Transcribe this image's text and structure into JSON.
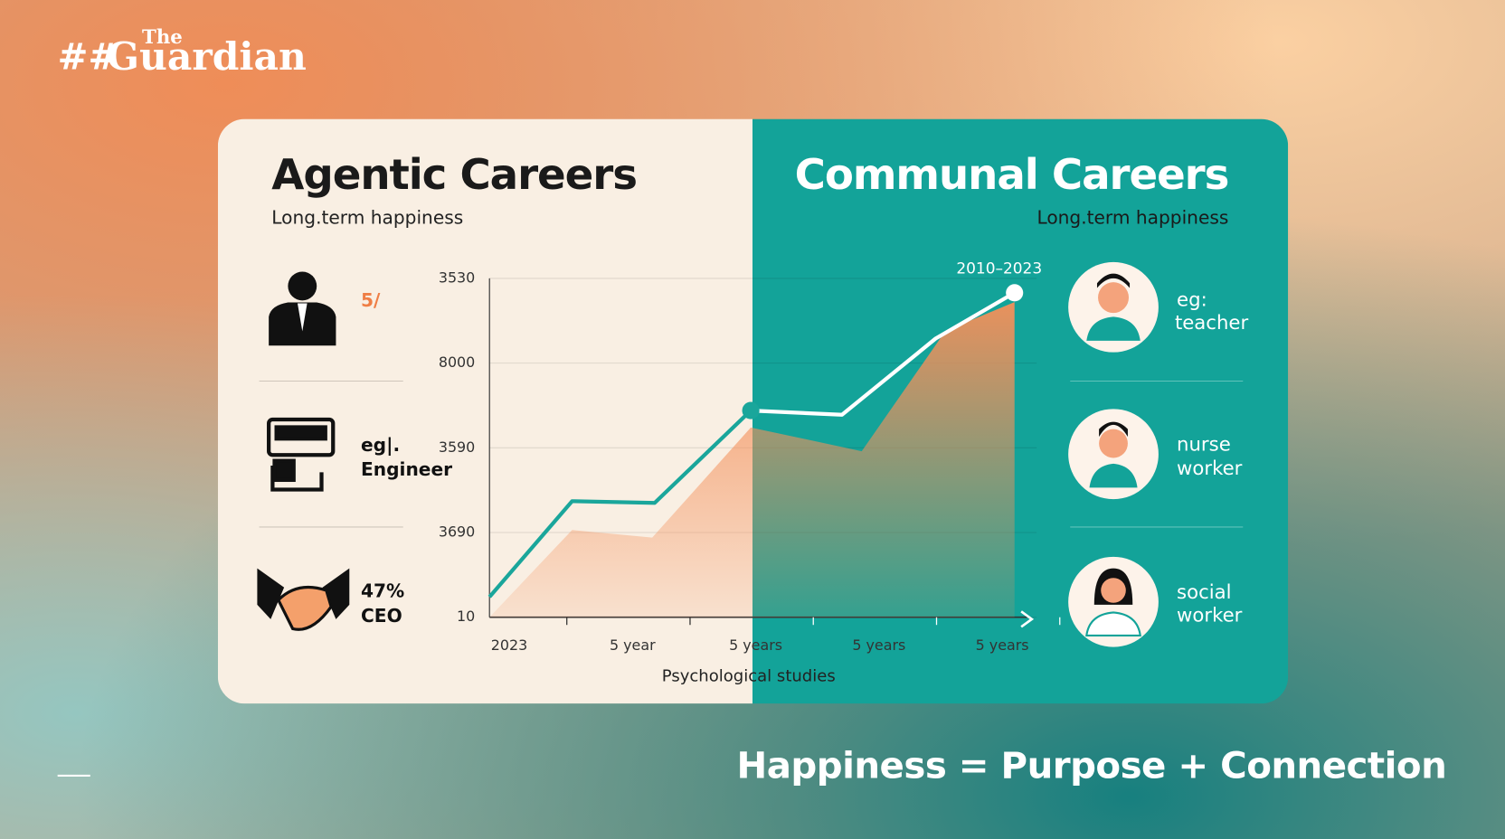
{
  "header": {
    "logo_prefix": "##",
    "logo_small": "The",
    "logo": "Guardian"
  },
  "left_panel": {
    "title": "Agentic Careers",
    "subtitle": "Long.term happiness",
    "items": [
      {
        "label": "5/"
      },
      {
        "label": "eg|.",
        "sub": "Engineer"
      },
      {
        "label": "47%",
        "sub": "CEO"
      }
    ]
  },
  "right_panel": {
    "title": "Communal Careers",
    "subtitle": "Long.term happiness",
    "items": [
      {
        "label": "eg:",
        "sub": "teacher"
      },
      {
        "label": "nurse",
        "sub": "worker"
      },
      {
        "label": "social",
        "sub": "worker"
      }
    ]
  },
  "chart_data": {
    "type": "line",
    "annotation": "2010–2023",
    "x_label": "Psychological studies",
    "xlim": [
      -0.16,
      4.1
    ],
    "xticks": [
      {
        "value": 0,
        "label": "2023"
      },
      {
        "value": 1,
        "label": "5 year"
      },
      {
        "value": 2,
        "label": "5 years"
      },
      {
        "value": 3,
        "label": "5 years"
      },
      {
        "value": 4,
        "label": "5 years"
      }
    ],
    "ylim": [
      0,
      4
    ],
    "yticks": [
      {
        "value": 0,
        "label": "10"
      },
      {
        "value": 1,
        "label": "3690"
      },
      {
        "value": 2,
        "label": "3590"
      },
      {
        "value": 3,
        "label": "8000"
      },
      {
        "value": 4,
        "label": "3530"
      }
    ],
    "grid": true,
    "series": [
      {
        "type": "area",
        "color": "#f4905a",
        "x": [
          -0.16,
          0.51,
          1.16,
          1.96,
          2.86,
          3.54,
          4.1
        ],
        "values": [
          0,
          1.03,
          0.94,
          2.24,
          1.96,
          3.38,
          3.72
        ]
      },
      {
        "type": "line",
        "color": "#1aa69b",
        "color_on_dark": "#ffffff",
        "x": [
          -0.16,
          0.51,
          1.18,
          1.96,
          2.7,
          3.46,
          4.1
        ],
        "values": [
          0.24,
          1.37,
          1.35,
          2.44,
          2.39,
          3.29,
          3.83
        ]
      }
    ]
  },
  "footer": {
    "tagline": "Happiness = Purpose + Connection"
  }
}
